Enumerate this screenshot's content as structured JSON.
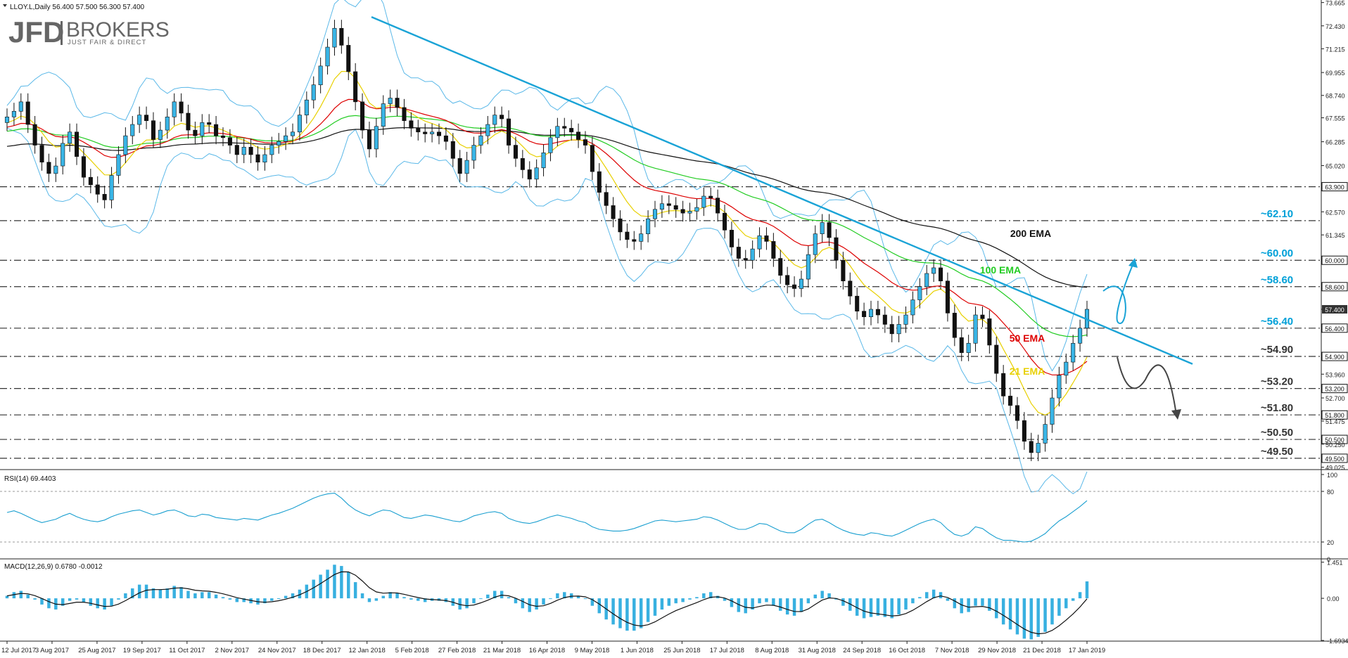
{
  "header": {
    "symbol_line": "LLOY.L,Daily  56.400 57.500 56.300 57.400",
    "logo_main": "JFD",
    "logo_brand": "BROKERS",
    "logo_tagline": "JUST FAIR & DIRECT"
  },
  "chart_data": [
    {
      "type": "candlestick",
      "panel": "price",
      "price_axis_ticks": [
        "73.665",
        "72.430",
        "71.215",
        "69.955",
        "68.740",
        "67.555",
        "66.285",
        "65.020",
        "63.900",
        "62.570",
        "61.345",
        "60.000",
        "58.600",
        "57.400",
        "56.400",
        "54.900",
        "53.960",
        "53.200",
        "52.700",
        "51.800",
        "51.475",
        "50.500",
        "50.250",
        "49.500",
        "49.025"
      ],
      "ylim": [
        48.9,
        73.8
      ],
      "horizontal_levels": [
        {
          "value": 63.9,
          "axis_label": "63.900"
        },
        {
          "value": 62.1,
          "axis_label": "62.100",
          "annotation": "~62.10",
          "color": "#00a0d8"
        },
        {
          "value": 60.0,
          "axis_label": "60.000",
          "annotation": "~60.00",
          "color": "#00a0d8"
        },
        {
          "value": 58.6,
          "axis_label": "58.600",
          "annotation": "~58.60",
          "color": "#00a0d8"
        },
        {
          "value": 56.4,
          "axis_label": "56.400",
          "annotation": "~56.40",
          "color": "#00a0d8"
        },
        {
          "value": 54.9,
          "axis_label": "54.900",
          "annotation": "~54.90",
          "color": "#333333"
        },
        {
          "value": 53.2,
          "axis_label": "53.200",
          "annotation": "~53.20",
          "color": "#333333"
        },
        {
          "value": 51.8,
          "axis_label": "51.800",
          "annotation": "~51.80",
          "color": "#333333"
        },
        {
          "value": 50.5,
          "axis_label": "50.500",
          "annotation": "~50.50",
          "color": "#333333"
        },
        {
          "value": 49.5,
          "axis_label": "49.500",
          "annotation": "~49.50",
          "color": "#333333"
        }
      ],
      "last_price_label": "57.400",
      "ema_labels": [
        {
          "text": "200 EMA",
          "color": "#111111"
        },
        {
          "text": "100 EMA",
          "color": "#22cc22"
        },
        {
          "text": "50 EMA",
          "color": "#dd0000"
        },
        {
          "text": "21 EMA",
          "color": "#e8d000"
        }
      ],
      "series": [
        {
          "name": "Close",
          "values": [
            67.6,
            67.9,
            68.4,
            67.2,
            66.1,
            65.2,
            64.6,
            65.0,
            66.2,
            66.8,
            65.5,
            64.4,
            64.0,
            63.5,
            63.2,
            64.5,
            65.6,
            66.6,
            67.2,
            67.7,
            67.4,
            66.4,
            66.9,
            67.6,
            68.4,
            67.8,
            66.9,
            66.6,
            67.3,
            67.2,
            66.6,
            66.5,
            66.1,
            65.6,
            66.0,
            65.6,
            65.2,
            65.6,
            66.1,
            66.3,
            66.6,
            66.8,
            67.7,
            68.5,
            69.3,
            70.3,
            71.3,
            72.3,
            71.4,
            70.0,
            68.4,
            66.9,
            65.9,
            67.1,
            68.3,
            68.6,
            68.1,
            67.4,
            67.0,
            66.8,
            66.7,
            66.8,
            66.6,
            66.3,
            65.4,
            64.6,
            65.3,
            66.1,
            66.6,
            67.2,
            67.7,
            67.5,
            66.1,
            65.4,
            64.8,
            64.3,
            64.9,
            65.7,
            66.5,
            67.1,
            67.0,
            66.8,
            66.4,
            66.1,
            64.7,
            63.6,
            62.9,
            62.2,
            61.5,
            61.1,
            61.0,
            61.4,
            62.2,
            62.7,
            63.0,
            62.9,
            62.7,
            62.5,
            62.6,
            62.8,
            63.4,
            63.3,
            62.5,
            61.6,
            60.7,
            60.1,
            60.0,
            60.6,
            61.3,
            61.0,
            60.1,
            59.2,
            58.7,
            58.5,
            59.0,
            60.3,
            61.4,
            62.0,
            61.2,
            60.0,
            58.9,
            58.1,
            57.3,
            57.0,
            57.4,
            57.1,
            56.6,
            56.1,
            56.6,
            57.1,
            57.9,
            58.6,
            59.3,
            59.6,
            58.9,
            57.2,
            55.9,
            55.1,
            55.6,
            57.1,
            56.9,
            55.5,
            54.0,
            52.8,
            52.3,
            51.5,
            50.4,
            49.8,
            50.3,
            51.3,
            52.7,
            53.9,
            54.6,
            55.6,
            56.4,
            57.4
          ]
        },
        {
          "name": "200 EMA",
          "color": "#111111"
        },
        {
          "name": "100 EMA",
          "color": "#22cc22"
        },
        {
          "name": "50 EMA",
          "color": "#dd0000"
        },
        {
          "name": "21 EMA",
          "color": "#e8d000"
        },
        {
          "name": "Bollinger Bands",
          "color": "#55b8e8"
        }
      ],
      "trendline": {
        "from": {
          "date": "12 Jan 2018",
          "value": 72.9
        },
        "to": {
          "date": "17 Jan 2019",
          "value": 56.8
        },
        "extends_to_value": 54.5
      },
      "scenarios": [
        {
          "direction": "up",
          "color": "#00a0d8"
        },
        {
          "direction": "down",
          "color": "#444444"
        }
      ]
    },
    {
      "type": "line",
      "panel": "rsi",
      "title": "RSI(14) 69.4403",
      "axis_ticks": [
        "100",
        "80",
        "20",
        "0"
      ],
      "ylim": [
        0,
        100
      ],
      "levels": [
        80,
        20
      ],
      "series": [
        {
          "name": "RSI",
          "color": "#1a9fd0",
          "values": [
            55,
            57,
            54,
            50,
            46,
            43,
            45,
            47,
            51,
            54,
            50,
            47,
            45,
            44,
            46,
            50,
            53,
            55,
            57,
            58,
            55,
            52,
            54,
            57,
            58,
            55,
            51,
            50,
            53,
            52,
            49,
            48,
            47,
            46,
            48,
            47,
            46,
            49,
            52,
            54,
            57,
            60,
            64,
            68,
            72,
            75,
            77,
            78,
            72,
            64,
            58,
            54,
            51,
            55,
            58,
            57,
            53,
            49,
            48,
            50,
            52,
            51,
            49,
            47,
            45,
            44,
            47,
            51,
            53,
            55,
            56,
            54,
            48,
            45,
            43,
            42,
            44,
            47,
            50,
            52,
            50,
            48,
            45,
            43,
            38,
            35,
            34,
            33,
            33,
            34,
            36,
            39,
            42,
            45,
            46,
            45,
            44,
            45,
            46,
            47,
            50,
            49,
            46,
            42,
            38,
            35,
            35,
            38,
            42,
            41,
            37,
            33,
            31,
            31,
            35,
            41,
            46,
            47,
            43,
            38,
            34,
            31,
            29,
            28,
            31,
            30,
            28,
            27,
            30,
            34,
            38,
            42,
            45,
            47,
            43,
            35,
            29,
            27,
            30,
            38,
            36,
            30,
            25,
            22,
            22,
            21,
            20,
            21,
            25,
            30,
            38,
            45,
            50,
            56,
            62,
            69
          ]
        }
      ]
    },
    {
      "type": "histogram",
      "panel": "macd",
      "title": "MACD(12,26,9) 0.6780 -0.0012",
      "axis_ticks": [
        "1.451",
        "0.00",
        "-1.6934"
      ],
      "ylim": [
        -1.72,
        1.5
      ],
      "series": [
        {
          "name": "MACD histogram",
          "color": "#38b0e0",
          "values": [
            0.1,
            0.25,
            0.3,
            0.15,
            -0.05,
            -0.25,
            -0.4,
            -0.45,
            -0.3,
            -0.1,
            -0.05,
            -0.15,
            -0.3,
            -0.4,
            -0.45,
            -0.3,
            -0.05,
            0.2,
            0.4,
            0.55,
            0.55,
            0.4,
            0.35,
            0.4,
            0.5,
            0.45,
            0.3,
            0.2,
            0.25,
            0.25,
            0.15,
            0.05,
            -0.05,
            -0.15,
            -0.15,
            -0.2,
            -0.25,
            -0.2,
            -0.1,
            0.0,
            0.1,
            0.2,
            0.35,
            0.55,
            0.75,
            0.95,
            1.15,
            1.35,
            1.3,
            1.05,
            0.65,
            0.2,
            -0.15,
            -0.1,
            0.1,
            0.25,
            0.2,
            0.05,
            -0.05,
            -0.1,
            -0.15,
            -0.1,
            -0.1,
            -0.15,
            -0.3,
            -0.45,
            -0.4,
            -0.2,
            0.0,
            0.15,
            0.3,
            0.3,
            0.05,
            -0.2,
            -0.4,
            -0.55,
            -0.45,
            -0.25,
            0.0,
            0.2,
            0.25,
            0.2,
            0.1,
            0.0,
            -0.3,
            -0.6,
            -0.85,
            -1.05,
            -1.2,
            -1.3,
            -1.3,
            -1.2,
            -0.95,
            -0.7,
            -0.45,
            -0.3,
            -0.2,
            -0.15,
            -0.05,
            0.05,
            0.2,
            0.25,
            0.1,
            -0.1,
            -0.35,
            -0.55,
            -0.6,
            -0.45,
            -0.2,
            -0.15,
            -0.3,
            -0.5,
            -0.65,
            -0.7,
            -0.55,
            -0.2,
            0.15,
            0.3,
            0.2,
            -0.05,
            -0.3,
            -0.5,
            -0.7,
            -0.8,
            -0.75,
            -0.7,
            -0.75,
            -0.8,
            -0.65,
            -0.45,
            -0.2,
            0.05,
            0.25,
            0.35,
            0.25,
            -0.1,
            -0.4,
            -0.6,
            -0.55,
            -0.3,
            -0.3,
            -0.5,
            -0.8,
            -1.05,
            -1.25,
            -1.45,
            -1.62,
            -1.65,
            -1.55,
            -1.35,
            -1.05,
            -0.7,
            -0.4,
            -0.1,
            0.25,
            0.68
          ]
        },
        {
          "name": "Signal",
          "color": "#111111"
        }
      ]
    }
  ],
  "x_axis_labels": [
    "12 Jul 2017",
    "3 Aug 2017",
    "25 Aug 2017",
    "19 Sep 2017",
    "11 Oct 2017",
    "2 Nov 2017",
    "24 Nov 2017",
    "18 Dec 2017",
    "12 Jan 2018",
    "5 Feb 2018",
    "27 Feb 2018",
    "21 Mar 2018",
    "16 Apr 2018",
    "9 May 2018",
    "1 Jun 2018",
    "25 Jun 2018",
    "17 Jul 2018",
    "8 Aug 2018",
    "31 Aug 2018",
    "24 Sep 2018",
    "16 Oct 2018",
    "7 Nov 2018",
    "29 Nov 2018",
    "21 Dec 2018",
    "17 Jan 2019"
  ]
}
